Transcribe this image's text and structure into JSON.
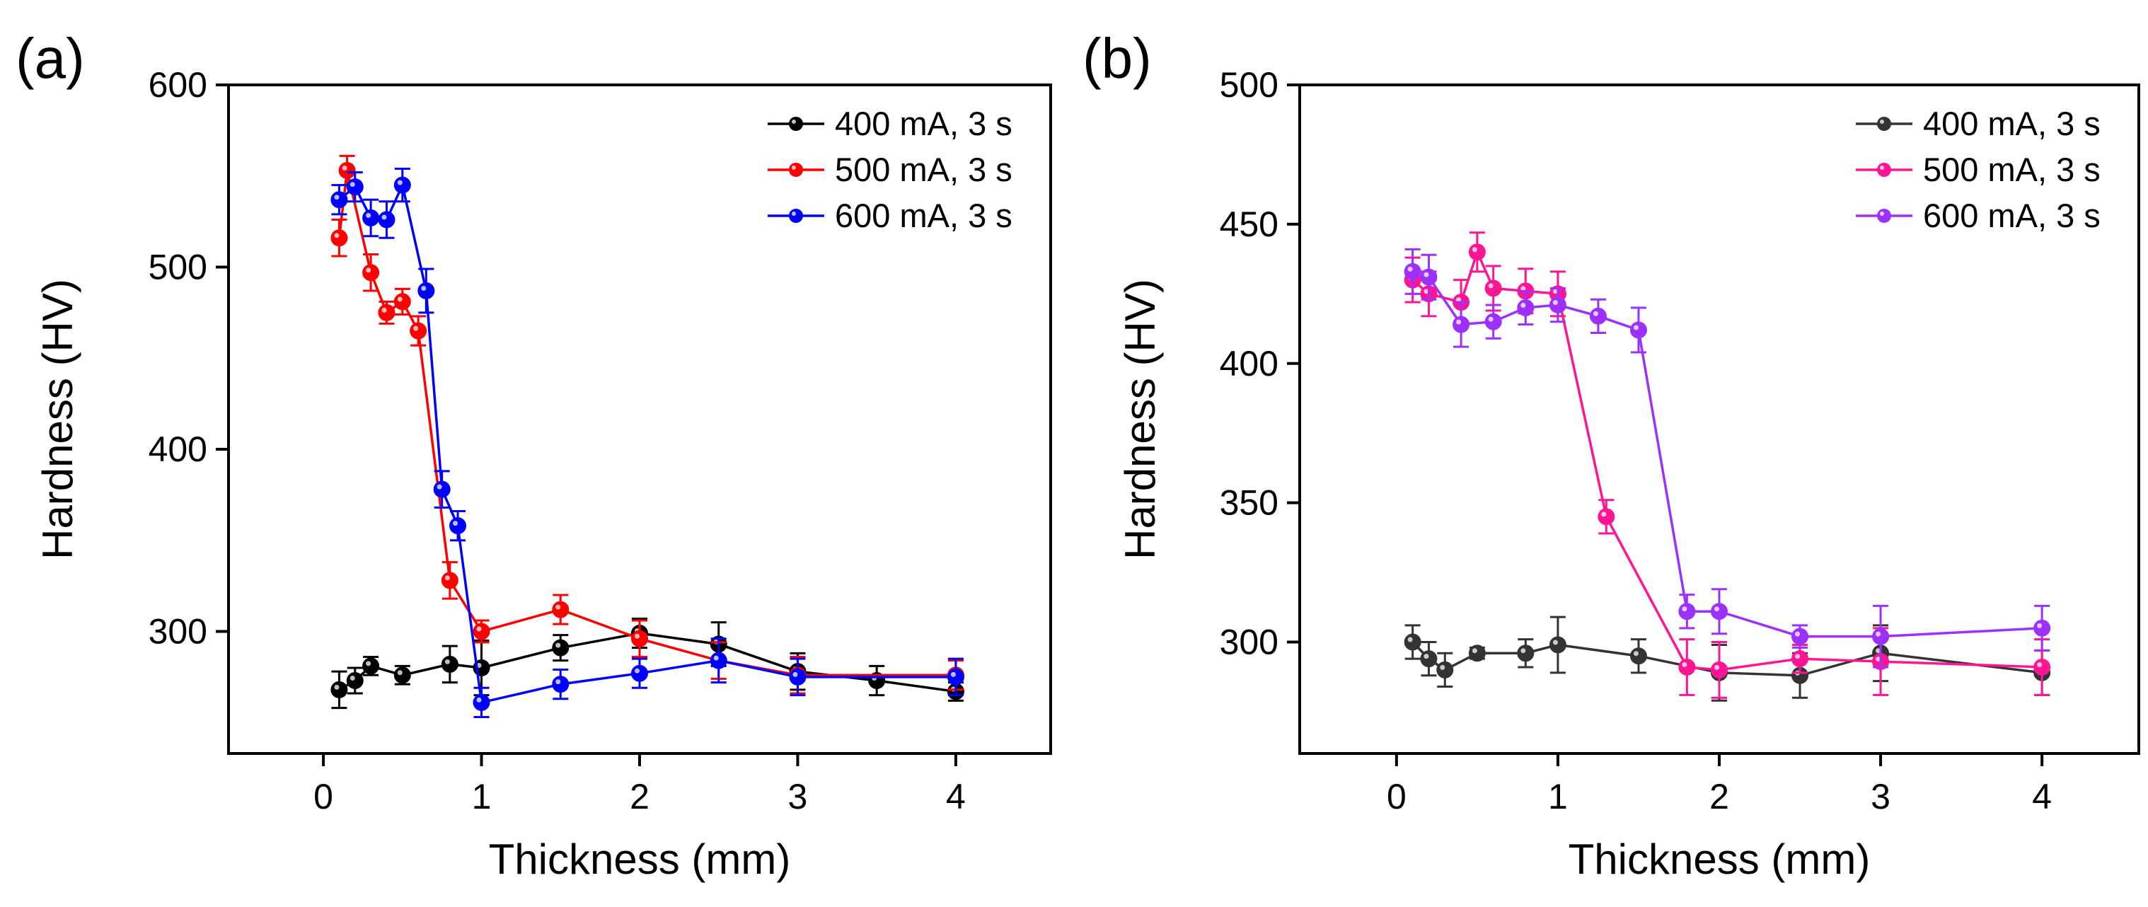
{
  "chart_data": [
    {
      "type": "line",
      "panel_label": "(a)",
      "xlabel": "Thickness (mm)",
      "ylabel": "Hardness (HV)",
      "xlim": [
        -0.6,
        4.6
      ],
      "ylim": [
        233,
        600
      ],
      "xticks": [
        0,
        1,
        2,
        3,
        4
      ],
      "yticks": [
        300,
        400,
        500,
        600
      ],
      "legend_position": "top-right",
      "series": [
        {
          "name": "400 mA, 3 s",
          "color": "#000000",
          "points": [
            {
              "x": 0.1,
              "y": 268,
              "err": 10
            },
            {
              "x": 0.2,
              "y": 273,
              "err": 7
            },
            {
              "x": 0.3,
              "y": 281,
              "err": 5
            },
            {
              "x": 0.5,
              "y": 276,
              "err": 5
            },
            {
              "x": 0.8,
              "y": 282,
              "err": 10
            },
            {
              "x": 1.0,
              "y": 280,
              "err": 15
            },
            {
              "x": 1.5,
              "y": 291,
              "err": 7
            },
            {
              "x": 2.0,
              "y": 299,
              "err": 8
            },
            {
              "x": 2.5,
              "y": 293,
              "err": 12
            },
            {
              "x": 3.0,
              "y": 278,
              "err": 10
            },
            {
              "x": 3.5,
              "y": 273,
              "err": 8
            },
            {
              "x": 4.0,
              "y": 267,
              "err": 5
            }
          ]
        },
        {
          "name": "500 mA, 3 s",
          "color": "#ff0000",
          "points": [
            {
              "x": 0.1,
              "y": 516,
              "err": 10
            },
            {
              "x": 0.15,
              "y": 553,
              "err": 8
            },
            {
              "x": 0.3,
              "y": 497,
              "err": 10
            },
            {
              "x": 0.4,
              "y": 475,
              "err": 6
            },
            {
              "x": 0.5,
              "y": 481,
              "err": 7
            },
            {
              "x": 0.6,
              "y": 465,
              "err": 8
            },
            {
              "x": 0.8,
              "y": 328,
              "err": 10
            },
            {
              "x": 1.0,
              "y": 300,
              "err": 6
            },
            {
              "x": 1.5,
              "y": 312,
              "err": 8
            },
            {
              "x": 2.0,
              "y": 296,
              "err": 10
            },
            {
              "x": 2.5,
              "y": 284,
              "err": 10
            },
            {
              "x": 3.0,
              "y": 276,
              "err": 10
            },
            {
              "x": 4.0,
              "y": 276,
              "err": 8
            }
          ]
        },
        {
          "name": "600 mA, 3 s",
          "color": "#0000ff",
          "points": [
            {
              "x": 0.1,
              "y": 537,
              "err": 8
            },
            {
              "x": 0.2,
              "y": 544,
              "err": 8
            },
            {
              "x": 0.3,
              "y": 527,
              "err": 10
            },
            {
              "x": 0.4,
              "y": 526,
              "err": 10
            },
            {
              "x": 0.5,
              "y": 545,
              "err": 9
            },
            {
              "x": 0.65,
              "y": 487,
              "err": 12
            },
            {
              "x": 0.75,
              "y": 378,
              "err": 10
            },
            {
              "x": 0.85,
              "y": 358,
              "err": 8
            },
            {
              "x": 1.0,
              "y": 261,
              "err": 8
            },
            {
              "x": 1.5,
              "y": 271,
              "err": 8
            },
            {
              "x": 2.0,
              "y": 277,
              "err": 8
            },
            {
              "x": 2.5,
              "y": 284,
              "err": 12
            },
            {
              "x": 3.0,
              "y": 275,
              "err": 10
            },
            {
              "x": 4.0,
              "y": 275,
              "err": 10
            }
          ]
        }
      ]
    },
    {
      "type": "line",
      "panel_label": "(b)",
      "xlabel": "Thickness (mm)",
      "ylabel": "Hardness (HV)",
      "xlim": [
        -0.6,
        4.6
      ],
      "ylim": [
        260,
        500
      ],
      "xticks": [
        0,
        1,
        2,
        3,
        4
      ],
      "yticks": [
        300,
        350,
        400,
        450,
        500
      ],
      "legend_position": "top-right",
      "series": [
        {
          "name": "400 mA, 3 s",
          "color": "#333333",
          "points": [
            {
              "x": 0.1,
              "y": 300,
              "err": 6
            },
            {
              "x": 0.2,
              "y": 294,
              "err": 6
            },
            {
              "x": 0.3,
              "y": 290,
              "err": 6
            },
            {
              "x": 0.5,
              "y": 296,
              "err": 2
            },
            {
              "x": 0.8,
              "y": 296,
              "err": 5
            },
            {
              "x": 1.0,
              "y": 299,
              "err": 10
            },
            {
              "x": 1.5,
              "y": 295,
              "err": 6
            },
            {
              "x": 2.0,
              "y": 289,
              "err": 10
            },
            {
              "x": 2.5,
              "y": 288,
              "err": 8
            },
            {
              "x": 3.0,
              "y": 296,
              "err": 10
            },
            {
              "x": 4.0,
              "y": 289,
              "err": 8
            }
          ]
        },
        {
          "name": "500 mA, 3 s",
          "color": "#ff1493",
          "points": [
            {
              "x": 0.1,
              "y": 430,
              "err": 8
            },
            {
              "x": 0.2,
              "y": 425,
              "err": 8
            },
            {
              "x": 0.4,
              "y": 422,
              "err": 8
            },
            {
              "x": 0.5,
              "y": 440,
              "err": 7
            },
            {
              "x": 0.6,
              "y": 427,
              "err": 8
            },
            {
              "x": 0.8,
              "y": 426,
              "err": 8
            },
            {
              "x": 1.0,
              "y": 425,
              "err": 8
            },
            {
              "x": 1.3,
              "y": 345,
              "err": 6
            },
            {
              "x": 1.8,
              "y": 291,
              "err": 10
            },
            {
              "x": 2.0,
              "y": 290,
              "err": 10
            },
            {
              "x": 2.5,
              "y": 294,
              "err": 5
            },
            {
              "x": 3.0,
              "y": 293,
              "err": 12
            },
            {
              "x": 4.0,
              "y": 291,
              "err": 10
            }
          ]
        },
        {
          "name": "600 mA, 3 s",
          "color": "#9b30ff",
          "points": [
            {
              "x": 0.1,
              "y": 433,
              "err": 8
            },
            {
              "x": 0.2,
              "y": 431,
              "err": 8
            },
            {
              "x": 0.4,
              "y": 414,
              "err": 8
            },
            {
              "x": 0.6,
              "y": 415,
              "err": 6
            },
            {
              "x": 0.8,
              "y": 420,
              "err": 6
            },
            {
              "x": 1.0,
              "y": 421,
              "err": 6
            },
            {
              "x": 1.25,
              "y": 417,
              "err": 6
            },
            {
              "x": 1.5,
              "y": 412,
              "err": 8
            },
            {
              "x": 1.8,
              "y": 311,
              "err": 6
            },
            {
              "x": 2.0,
              "y": 311,
              "err": 8
            },
            {
              "x": 2.5,
              "y": 302,
              "err": 4
            },
            {
              "x": 3.0,
              "y": 302,
              "err": 11
            },
            {
              "x": 4.0,
              "y": 305,
              "err": 8
            }
          ]
        }
      ]
    }
  ]
}
